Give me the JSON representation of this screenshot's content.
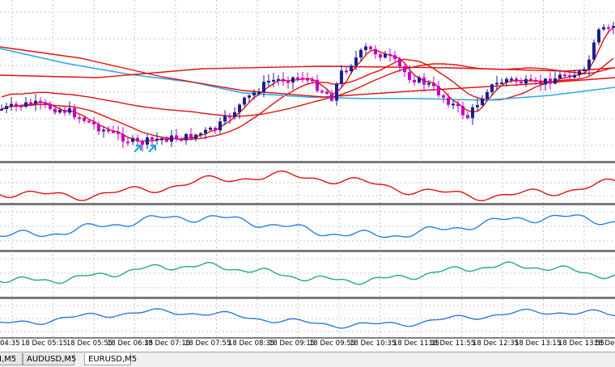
{
  "colors": {
    "grid": "#c8c8c8",
    "bull": "#1a2090",
    "bear": "#c400c4",
    "ma_red": "#e01010",
    "ma_blue": "#28a8e8",
    "arrow": "#18a8e8",
    "ind1": "#e01010",
    "ind2": "#2a80e0",
    "ind3": "#20a890",
    "ind4": "#2a78e0",
    "separator": "#7a7a7a"
  },
  "time_labels": [
    "04:35",
    "18 Dec 05:15",
    "18 Dec 05:55",
    "18 Dec 06:35",
    "18 Dec 07:15",
    "18 Dec 07:55",
    "18 Dec 08:35",
    "18 Dec 09:15",
    "18 Dec 09:55",
    "18 Dec 10:35",
    "18 Dec 11:15",
    "18 Dec 11:55",
    "18 Dec 12:35",
    "18 Dec 13:15",
    "18 Dec 13:55",
    "18 Dec"
  ],
  "tabs": [
    {
      "label": "I,M5",
      "active": false
    },
    {
      "label": "AUDUSD,M5",
      "active": false
    },
    {
      "label": "EURUSD,M5",
      "active": true
    }
  ],
  "signal_arrows": {
    "count": 2,
    "icon": "up-right-arrow-icon"
  }
}
